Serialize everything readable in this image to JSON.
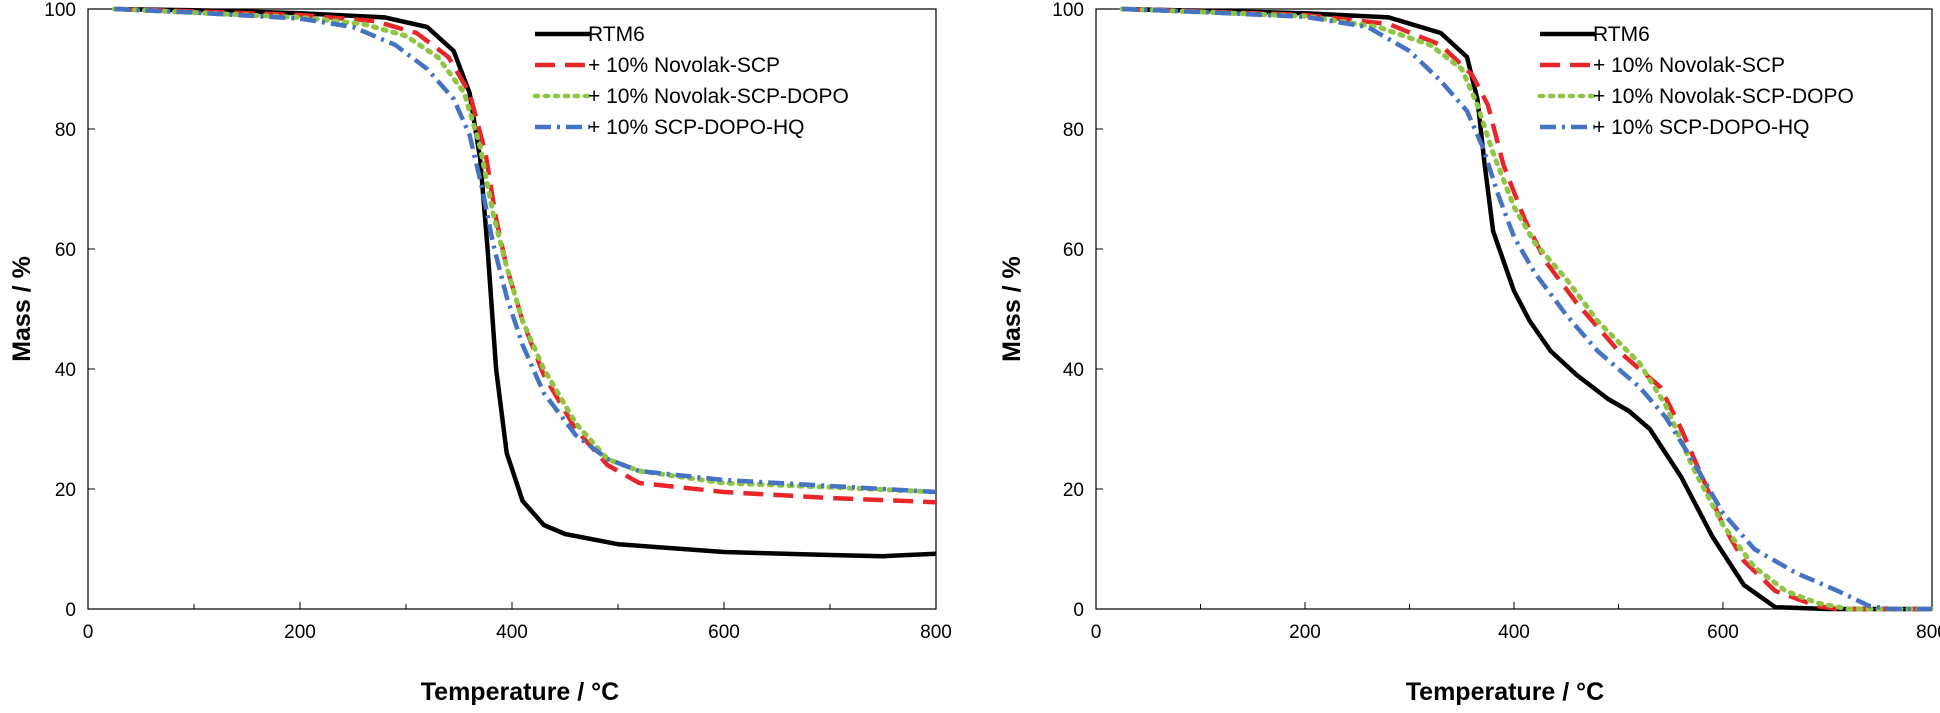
{
  "chart_data": [
    {
      "type": "line",
      "xlabel": "Temperature  / °C",
      "ylabel": "Mass / %",
      "xlim": [
        0,
        800
      ],
      "ylim": [
        0,
        100
      ],
      "xticks": [
        0,
        200,
        400,
        600,
        800
      ],
      "yticks": [
        0,
        20,
        40,
        60,
        80,
        100
      ],
      "grid": false,
      "legend_position": "top-right",
      "series": [
        {
          "name": "RTM6",
          "color": "#000000",
          "dash": "solid",
          "points": [
            [
              25,
              100
            ],
            [
              100,
              99.8
            ],
            [
              200,
              99.3
            ],
            [
              280,
              98.6
            ],
            [
              320,
              97
            ],
            [
              345,
              93
            ],
            [
              360,
              86
            ],
            [
              370,
              75
            ],
            [
              377,
              60
            ],
            [
              385,
              40
            ],
            [
              395,
              26
            ],
            [
              410,
              18
            ],
            [
              430,
              14
            ],
            [
              450,
              12.5
            ],
            [
              500,
              10.8
            ],
            [
              600,
              9.5
            ],
            [
              700,
              9
            ],
            [
              750,
              8.8
            ],
            [
              800,
              9.2
            ]
          ]
        },
        {
          "name": "+ 10% Novolak-SCP",
          "color": "#e8262a",
          "dash": "dashed",
          "points": [
            [
              25,
              100
            ],
            [
              100,
              99.6
            ],
            [
              200,
              99
            ],
            [
              270,
              98
            ],
            [
              310,
              96
            ],
            [
              340,
              92
            ],
            [
              360,
              86
            ],
            [
              375,
              76
            ],
            [
              385,
              65
            ],
            [
              395,
              57
            ],
            [
              410,
              48
            ],
            [
              430,
              39
            ],
            [
              460,
              30
            ],
            [
              490,
              24
            ],
            [
              520,
              21
            ],
            [
              600,
              19.5
            ],
            [
              700,
              18.5
            ],
            [
              800,
              17.8
            ]
          ]
        },
        {
          "name": "+ 10% Novolak-SCP-DOPO",
          "color": "#8fc542",
          "dash": "dotted",
          "points": [
            [
              25,
              100
            ],
            [
              100,
              99.4
            ],
            [
              200,
              98.6
            ],
            [
              260,
              97.5
            ],
            [
              300,
              95.5
            ],
            [
              330,
              92
            ],
            [
              355,
              86
            ],
            [
              370,
              77
            ],
            [
              382,
              66
            ],
            [
              395,
              57
            ],
            [
              410,
              48
            ],
            [
              430,
              40
            ],
            [
              460,
              31
            ],
            [
              490,
              25
            ],
            [
              520,
              23
            ],
            [
              600,
              21
            ],
            [
              700,
              20.3
            ],
            [
              800,
              19.5
            ]
          ]
        },
        {
          "name": "+ 10% SCP-DOPO-HQ",
          "color": "#4472c4",
          "dash": "dashdot",
          "points": [
            [
              25,
              100
            ],
            [
              100,
              99.4
            ],
            [
              200,
              98.4
            ],
            [
              250,
              97
            ],
            [
              290,
              94
            ],
            [
              320,
              90
            ],
            [
              345,
              85
            ],
            [
              360,
              79
            ],
            [
              372,
              70
            ],
            [
              382,
              61
            ],
            [
              395,
              52
            ],
            [
              410,
              44
            ],
            [
              430,
              36
            ],
            [
              460,
              29
            ],
            [
              490,
              25
            ],
            [
              520,
              23
            ],
            [
              600,
              21.5
            ],
            [
              700,
              20.5
            ],
            [
              800,
              19.5
            ]
          ]
        }
      ]
    },
    {
      "type": "line",
      "xlabel": "Temperature  / °C",
      "ylabel": "Mass / %",
      "xlim": [
        0,
        800
      ],
      "ylim": [
        0,
        100
      ],
      "xticks": [
        0,
        200,
        400,
        600,
        800
      ],
      "yticks": [
        0,
        20,
        40,
        60,
        80,
        100
      ],
      "grid": false,
      "legend_position": "top-right",
      "series": [
        {
          "name": "RTM6",
          "color": "#000000",
          "dash": "solid",
          "points": [
            [
              25,
              100
            ],
            [
              100,
              99.7
            ],
            [
              200,
              99.3
            ],
            [
              280,
              98.6
            ],
            [
              330,
              96
            ],
            [
              355,
              92
            ],
            [
              365,
              85
            ],
            [
              372,
              74
            ],
            [
              380,
              63
            ],
            [
              390,
              58
            ],
            [
              400,
              53
            ],
            [
              415,
              48
            ],
            [
              435,
              43
            ],
            [
              460,
              39
            ],
            [
              490,
              35
            ],
            [
              510,
              33
            ],
            [
              530,
              30
            ],
            [
              560,
              22
            ],
            [
              590,
              12
            ],
            [
              620,
              4
            ],
            [
              650,
              0.3
            ],
            [
              700,
              0
            ],
            [
              800,
              0
            ]
          ]
        },
        {
          "name": "+ 10% Novolak-SCP",
          "color": "#e8262a",
          "dash": "dashed",
          "points": [
            [
              25,
              100
            ],
            [
              100,
              99.6
            ],
            [
              200,
              99
            ],
            [
              280,
              97.5
            ],
            [
              330,
              94
            ],
            [
              360,
              89
            ],
            [
              375,
              84
            ],
            [
              390,
              74
            ],
            [
              410,
              65
            ],
            [
              430,
              58
            ],
            [
              460,
              51
            ],
            [
              500,
              43
            ],
            [
              540,
              37
            ],
            [
              560,
              30
            ],
            [
              580,
              22
            ],
            [
              600,
              14
            ],
            [
              620,
              8
            ],
            [
              650,
              3
            ],
            [
              690,
              0.5
            ],
            [
              710,
              0
            ],
            [
              800,
              0
            ]
          ]
        },
        {
          "name": "+ 10% Novolak-SCP-DOPO",
          "color": "#8fc542",
          "dash": "dotted",
          "points": [
            [
              25,
              100
            ],
            [
              100,
              99.5
            ],
            [
              200,
              98.8
            ],
            [
              270,
              97
            ],
            [
              320,
              94
            ],
            [
              350,
              90
            ],
            [
              365,
              84
            ],
            [
              380,
              76
            ],
            [
              400,
              67
            ],
            [
              420,
              61
            ],
            [
              450,
              55
            ],
            [
              480,
              48
            ],
            [
              520,
              41
            ],
            [
              545,
              34
            ],
            [
              570,
              24
            ],
            [
              600,
              14
            ],
            [
              630,
              7
            ],
            [
              660,
              3
            ],
            [
              690,
              1
            ],
            [
              720,
              0
            ],
            [
              800,
              0
            ]
          ]
        },
        {
          "name": "+ 10% SCP-DOPO-HQ",
          "color": "#4472c4",
          "dash": "dashdot",
          "points": [
            [
              25,
              100
            ],
            [
              100,
              99.5
            ],
            [
              200,
              98.7
            ],
            [
              260,
              97
            ],
            [
              300,
              93
            ],
            [
              330,
              88
            ],
            [
              355,
              83
            ],
            [
              370,
              77
            ],
            [
              385,
              69
            ],
            [
              400,
              62
            ],
            [
              420,
              56
            ],
            [
              450,
              49
            ],
            [
              480,
              43
            ],
            [
              520,
              37
            ],
            [
              545,
              32
            ],
            [
              570,
              25
            ],
            [
              600,
              16
            ],
            [
              630,
              10
            ],
            [
              670,
              6
            ],
            [
              710,
              3
            ],
            [
              740,
              0.5
            ],
            [
              760,
              0
            ],
            [
              800,
              0
            ]
          ]
        }
      ]
    }
  ]
}
